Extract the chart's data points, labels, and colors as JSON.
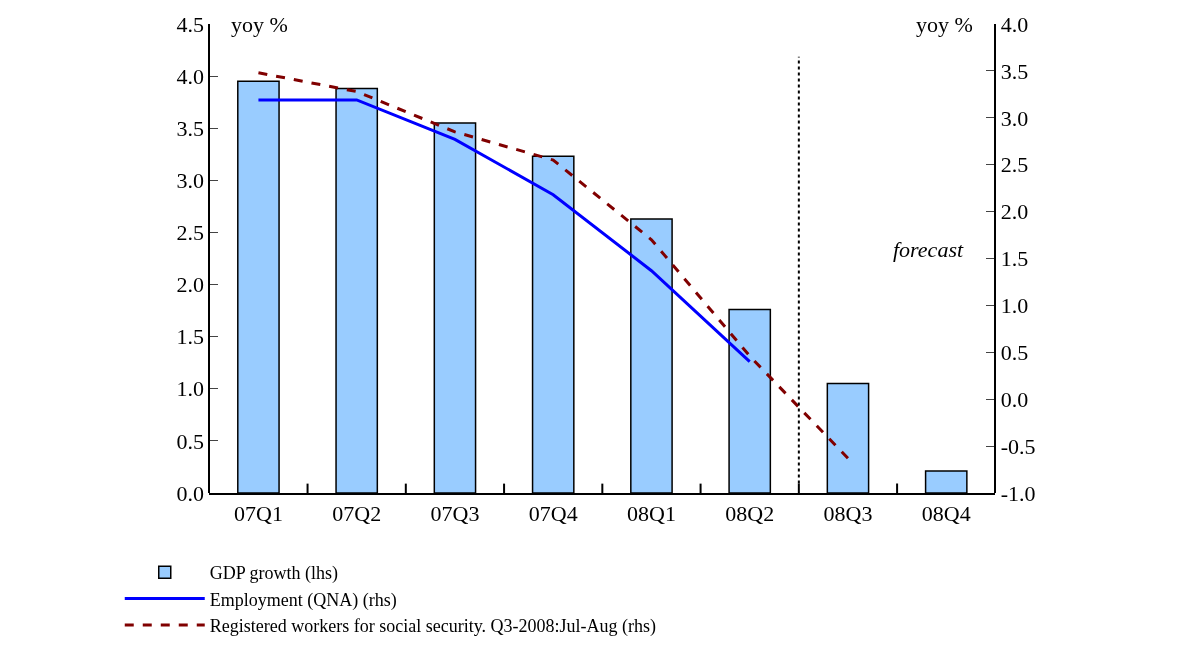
{
  "chart_data": {
    "type": "bar",
    "categories": [
      "07Q1",
      "07Q2",
      "07Q3",
      "07Q4",
      "08Q1",
      "08Q2",
      "08Q3",
      "08Q4"
    ],
    "ylabel": "yoy %",
    "y2label": "yoy %",
    "series": [
      {
        "name": "GDP growth (lhs)",
        "color": "#99ccff",
        "values": [
          3.95,
          3.88,
          3.55,
          3.23,
          2.63,
          1.76,
          1.05,
          0.21
        ]
      },
      {
        "name": "Employment (QNA) (rhs)",
        "type": "line",
        "axis": "y2",
        "color": "#0000ff",
        "line_style": "solid",
        "values": [
          3.19,
          3.19,
          2.77,
          2.18,
          1.37,
          0.4,
          null,
          null
        ]
      },
      {
        "name": "Registered workers for social security. Q3-2008:Jul-Aug (rhs)",
        "type": "line",
        "axis": "y2",
        "color": "#800000",
        "line_style": "dashed",
        "values": [
          3.48,
          3.28,
          2.85,
          2.55,
          1.7,
          0.46,
          -0.63,
          null
        ]
      }
    ],
    "ylim": [
      0,
      4.5
    ],
    "yticks": [
      {
        "value": 0,
        "label": "0.0"
      },
      {
        "value": 0.5,
        "label": "0.5"
      },
      {
        "value": 1,
        "label": "1.0"
      },
      {
        "value": 1.5,
        "label": "1.5"
      },
      {
        "value": 2,
        "label": "2.0"
      },
      {
        "value": 2.5,
        "label": "2.5"
      },
      {
        "value": 3,
        "label": "3.0"
      },
      {
        "value": 3.5,
        "label": "3.5"
      },
      {
        "value": 4,
        "label": "4.0"
      },
      {
        "value": 4.5,
        "label": "4.5"
      }
    ],
    "y2lim": [
      -1,
      4
    ],
    "y2ticks": [
      {
        "value": -1,
        "label": "-1.0"
      },
      {
        "value": -0.5,
        "label": "-0.5"
      },
      {
        "value": 0,
        "label": "0.0"
      },
      {
        "value": 0.5,
        "label": "0.5"
      },
      {
        "value": 1,
        "label": "1.0"
      },
      {
        "value": 1.5,
        "label": "1.5"
      },
      {
        "value": 2,
        "label": "2.0"
      },
      {
        "value": 2.5,
        "label": "2.5"
      },
      {
        "value": 3,
        "label": "3.0"
      },
      {
        "value": 3.5,
        "label": "3.5"
      },
      {
        "value": 4,
        "label": "4.0"
      }
    ],
    "annotations": [
      "forecast"
    ],
    "legend": "bottom"
  }
}
